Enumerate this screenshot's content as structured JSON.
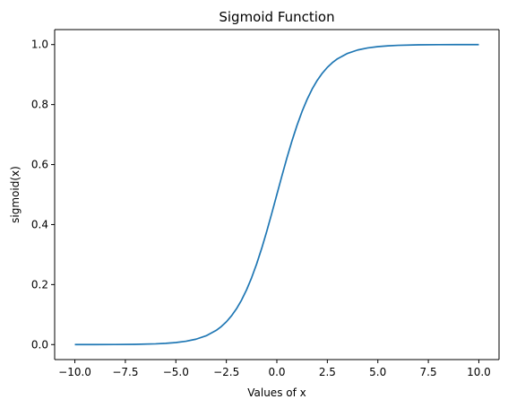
{
  "chart_data": {
    "type": "line",
    "title": "Sigmoid Function",
    "xlabel": "Values of x",
    "ylabel": "sigmoid(x)",
    "xlim": [
      -11,
      11
    ],
    "ylim": [
      -0.05,
      1.05
    ],
    "grid": false,
    "x_ticks": [
      -10.0,
      -7.5,
      -5.0,
      -2.5,
      0.0,
      2.5,
      5.0,
      7.5,
      10.0
    ],
    "x_tick_labels": [
      "−10.0",
      "−7.5",
      "−5.0",
      "−2.5",
      "0.0",
      "2.5",
      "5.0",
      "7.5",
      "10.0"
    ],
    "y_ticks": [
      0.0,
      0.2,
      0.4,
      0.6,
      0.8,
      1.0
    ],
    "y_tick_labels": [
      "0.0",
      "0.2",
      "0.4",
      "0.6",
      "0.8",
      "1.0"
    ],
    "series": [
      {
        "color": "#1f77b4",
        "x": [
          -10.0,
          -9.0,
          -8.0,
          -7.0,
          -6.0,
          -5.5,
          -5.0,
          -4.5,
          -4.0,
          -3.5,
          -3.0,
          -2.75,
          -2.5,
          -2.25,
          -2.0,
          -1.75,
          -1.5,
          -1.25,
          -1.0,
          -0.75,
          -0.5,
          -0.25,
          0.0,
          0.25,
          0.5,
          0.75,
          1.0,
          1.25,
          1.5,
          1.75,
          2.0,
          2.25,
          2.5,
          2.75,
          3.0,
          3.5,
          4.0,
          4.5,
          5.0,
          5.5,
          6.0,
          7.0,
          8.0,
          9.0,
          10.0
        ],
        "y": [
          0.0,
          0.0001,
          0.0003,
          0.0009,
          0.0025,
          0.0041,
          0.0067,
          0.011,
          0.018,
          0.0293,
          0.0474,
          0.0601,
          0.0759,
          0.0954,
          0.1192,
          0.148,
          0.1824,
          0.2227,
          0.2689,
          0.3208,
          0.3775,
          0.4378,
          0.5,
          0.5622,
          0.6225,
          0.6792,
          0.7311,
          0.7773,
          0.8176,
          0.852,
          0.8808,
          0.9046,
          0.9241,
          0.9399,
          0.9526,
          0.9707,
          0.982,
          0.989,
          0.9933,
          0.9959,
          0.9975,
          0.9991,
          0.9997,
          0.9999,
          1.0
        ]
      }
    ]
  }
}
